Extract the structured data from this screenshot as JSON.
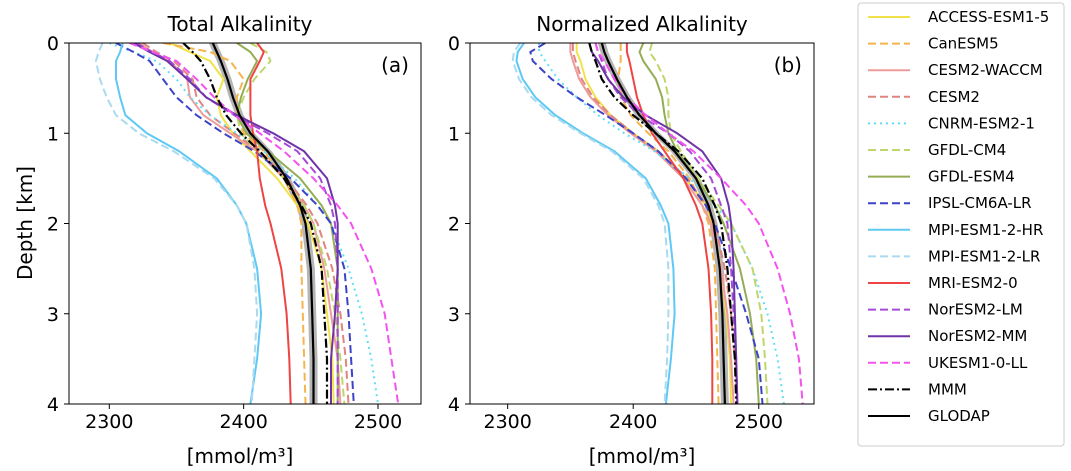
{
  "chart_data": [
    {
      "type": "line",
      "title": "Total Alkalinity",
      "panel_label": "(a)",
      "xlabel": "[mmol/m³]",
      "ylabel": "Depth [km]",
      "xlim": [
        2270,
        2532
      ],
      "ylim": [
        4,
        0
      ],
      "xticks": [
        2300,
        2400,
        2500
      ],
      "yticks": [
        0,
        1,
        2,
        3,
        4
      ],
      "y_axis_inverted": true,
      "depth_km": [
        0,
        0.1,
        0.2,
        0.4,
        0.6,
        0.8,
        1.0,
        1.2,
        1.5,
        1.8,
        2.0,
        2.5,
        3.0,
        3.5,
        4.0
      ],
      "series": [
        {
          "name": "ACCESS-ESM1-5",
          "values": [
            2345,
            2360,
            2375,
            2385,
            2380,
            2383,
            2392,
            2405,
            2425,
            2440,
            2448,
            2458,
            2462,
            2466,
            2467
          ]
        },
        {
          "name": "CanESM5",
          "values": [
            2340,
            2375,
            2390,
            2400,
            2395,
            2395,
            2400,
            2415,
            2430,
            2440,
            2443,
            2443,
            2444,
            2445,
            2446
          ]
        },
        {
          "name": "CESM2-WACCM",
          "values": [
            2322,
            2332,
            2345,
            2358,
            2360,
            2370,
            2390,
            2410,
            2430,
            2445,
            2452,
            2460,
            2465,
            2470,
            2472
          ]
        },
        {
          "name": "CESM2",
          "values": [
            2325,
            2335,
            2348,
            2362,
            2365,
            2375,
            2393,
            2412,
            2432,
            2447,
            2455,
            2466,
            2472,
            2476,
            2478
          ]
        },
        {
          "name": "CNRM-ESM2-1",
          "values": [
            2300,
            2318,
            2335,
            2350,
            2360,
            2375,
            2395,
            2415,
            2438,
            2455,
            2465,
            2478,
            2488,
            2495,
            2500
          ]
        },
        {
          "name": "GFDL-CM4",
          "values": [
            2405,
            2417,
            2420,
            2408,
            2400,
            2395,
            2398,
            2410,
            2430,
            2445,
            2452,
            2462,
            2468,
            2472,
            2475
          ]
        },
        {
          "name": "GFDL-ESM4",
          "values": [
            2395,
            2405,
            2410,
            2403,
            2398,
            2395,
            2402,
            2418,
            2442,
            2458,
            2465,
            2470,
            2470,
            2470,
            2470
          ]
        },
        {
          "name": "IPSL-CM6A-LR",
          "values": [
            2305,
            2318,
            2330,
            2340,
            2350,
            2365,
            2385,
            2408,
            2435,
            2455,
            2465,
            2475,
            2478,
            2480,
            2482
          ]
        },
        {
          "name": "MPI-ESM1-2-HR",
          "values": [
            2310,
            2308,
            2305,
            2305,
            2308,
            2312,
            2328,
            2352,
            2380,
            2395,
            2402,
            2410,
            2413,
            2410,
            2405
          ]
        },
        {
          "name": "MPI-ESM1-2-LR",
          "values": [
            2295,
            2292,
            2290,
            2293,
            2298,
            2305,
            2322,
            2348,
            2378,
            2395,
            2402,
            2408,
            2410,
            2408,
            2406
          ]
        },
        {
          "name": "MRI-ESM2-0",
          "values": [
            2410,
            2415,
            2412,
            2405,
            2405,
            2405,
            2407,
            2410,
            2412,
            2416,
            2420,
            2428,
            2432,
            2434,
            2435
          ]
        },
        {
          "name": "NorESM2-LM",
          "values": [
            2320,
            2332,
            2345,
            2360,
            2372,
            2393,
            2418,
            2440,
            2457,
            2465,
            2468,
            2470,
            2470,
            2470,
            2470
          ]
        },
        {
          "name": "NorESM2-MM",
          "values": [
            2318,
            2330,
            2343,
            2358,
            2372,
            2395,
            2422,
            2445,
            2462,
            2468,
            2470,
            2470,
            2468,
            2465,
            2465
          ]
        },
        {
          "name": "UKESM1-0-LL",
          "values": [
            2315,
            2332,
            2350,
            2365,
            2378,
            2393,
            2412,
            2430,
            2452,
            2470,
            2480,
            2495,
            2505,
            2510,
            2515
          ]
        },
        {
          "name": "MMM",
          "values": [
            2355,
            2362,
            2368,
            2375,
            2380,
            2387,
            2398,
            2412,
            2430,
            2443,
            2450,
            2458,
            2460,
            2462,
            2462
          ]
        },
        {
          "name": "GLODAP",
          "values": [
            2377,
            2380,
            2383,
            2388,
            2392,
            2397,
            2405,
            2418,
            2432,
            2442,
            2446,
            2450,
            2451,
            2452,
            2452
          ]
        }
      ]
    },
    {
      "type": "line",
      "title": "Normalized Alkalinity",
      "panel_label": "(b)",
      "xlabel": "[mmol/m³]",
      "ylabel": "",
      "xlim": [
        2270,
        2544
      ],
      "ylim": [
        4,
        0
      ],
      "xticks": [
        2300,
        2400,
        2500
      ],
      "yticks": [
        0,
        1,
        2,
        3,
        4
      ],
      "y_axis_inverted": true,
      "depth_km": [
        0,
        0.1,
        0.2,
        0.4,
        0.6,
        0.8,
        1.0,
        1.2,
        1.5,
        1.8,
        2.0,
        2.5,
        3.0,
        3.5,
        4.0
      ],
      "series": [
        {
          "name": "ACCESS-ESM1-5",
          "values": [
            2355,
            2355,
            2358,
            2362,
            2370,
            2382,
            2400,
            2420,
            2442,
            2458,
            2463,
            2470,
            2474,
            2477,
            2478
          ]
        },
        {
          "name": "CanESM5",
          "values": [
            2390,
            2390,
            2390,
            2388,
            2390,
            2398,
            2412,
            2428,
            2445,
            2455,
            2460,
            2465,
            2466,
            2467,
            2468
          ]
        },
        {
          "name": "CESM2-WACCM",
          "values": [
            2350,
            2350,
            2352,
            2357,
            2366,
            2380,
            2398,
            2418,
            2440,
            2455,
            2462,
            2470,
            2475,
            2478,
            2480
          ]
        },
        {
          "name": "CESM2",
          "values": [
            2352,
            2352,
            2354,
            2359,
            2368,
            2382,
            2400,
            2420,
            2443,
            2458,
            2465,
            2473,
            2478,
            2481,
            2483
          ]
        },
        {
          "name": "CNRM-ESM2-1",
          "values": [
            2325,
            2325,
            2330,
            2340,
            2355,
            2372,
            2393,
            2417,
            2445,
            2465,
            2478,
            2495,
            2507,
            2515,
            2520
          ]
        },
        {
          "name": "GFDL-CM4",
          "values": [
            2415,
            2413,
            2418,
            2425,
            2428,
            2428,
            2430,
            2438,
            2452,
            2468,
            2478,
            2495,
            2502,
            2505,
            2507
          ]
        },
        {
          "name": "GFDL-ESM4",
          "values": [
            2408,
            2405,
            2408,
            2418,
            2423,
            2425,
            2428,
            2435,
            2450,
            2465,
            2472,
            2485,
            2493,
            2498,
            2500
          ]
        },
        {
          "name": "IPSL-CM6A-LR",
          "values": [
            2330,
            2318,
            2320,
            2335,
            2355,
            2378,
            2400,
            2420,
            2442,
            2458,
            2465,
            2478,
            2490,
            2500,
            2503
          ]
        },
        {
          "name": "MPI-ESM1-2-HR",
          "values": [
            2313,
            2308,
            2307,
            2312,
            2322,
            2338,
            2360,
            2385,
            2410,
            2422,
            2428,
            2432,
            2433,
            2430,
            2426
          ]
        },
        {
          "name": "MPI-ESM1-2-LR",
          "values": [
            2310,
            2305,
            2304,
            2309,
            2319,
            2335,
            2358,
            2383,
            2408,
            2420,
            2425,
            2428,
            2428,
            2427,
            2425
          ]
        },
        {
          "name": "MRI-ESM2-0",
          "values": [
            2395,
            2395,
            2397,
            2400,
            2403,
            2408,
            2415,
            2425,
            2440,
            2450,
            2455,
            2460,
            2462,
            2463,
            2463
          ]
        },
        {
          "name": "NorESM2-LM",
          "values": [
            2370,
            2372,
            2375,
            2380,
            2390,
            2405,
            2428,
            2445,
            2462,
            2470,
            2475,
            2478,
            2480,
            2482,
            2483
          ]
        },
        {
          "name": "NorESM2-MM",
          "values": [
            2365,
            2367,
            2372,
            2380,
            2392,
            2410,
            2435,
            2455,
            2470,
            2476,
            2478,
            2480,
            2481,
            2482,
            2483
          ]
        },
        {
          "name": "UKESM1-0-LL",
          "values": [
            2370,
            2372,
            2377,
            2385,
            2395,
            2410,
            2428,
            2448,
            2470,
            2490,
            2500,
            2515,
            2525,
            2532,
            2535
          ]
        },
        {
          "name": "MMM",
          "values": [
            2365,
            2367,
            2370,
            2375,
            2385,
            2400,
            2418,
            2436,
            2455,
            2465,
            2470,
            2475,
            2478,
            2481,
            2482
          ]
        },
        {
          "name": "GLODAP",
          "values": [
            2375,
            2377,
            2380,
            2387,
            2395,
            2405,
            2418,
            2433,
            2450,
            2460,
            2464,
            2469,
            2471,
            2472,
            2473
          ]
        }
      ]
    }
  ],
  "legend": {
    "placement": "right",
    "entries": [
      {
        "name": "ACCESS-ESM1-5",
        "color": "#f2e24a",
        "style": "solid"
      },
      {
        "name": "CanESM5",
        "color": "#f5b44e",
        "style": "dashed"
      },
      {
        "name": "CESM2-WACCM",
        "color": "#ee9b9b",
        "style": "solid"
      },
      {
        "name": "CESM2",
        "color": "#df8580",
        "style": "dashed"
      },
      {
        "name": "CNRM-ESM2-1",
        "color": "#5fe0f5",
        "style": "dotted"
      },
      {
        "name": "GFDL-CM4",
        "color": "#bfd66a",
        "style": "dashed"
      },
      {
        "name": "GFDL-ESM4",
        "color": "#94ad55",
        "style": "solid"
      },
      {
        "name": "IPSL-CM6A-LR",
        "color": "#3d43c8",
        "style": "dashed"
      },
      {
        "name": "MPI-ESM1-2-HR",
        "color": "#5ec9f4",
        "style": "solid"
      },
      {
        "name": "MPI-ESM1-2-LR",
        "color": "#a9daf0",
        "style": "dashed"
      },
      {
        "name": "MRI-ESM2-0",
        "color": "#ef4444",
        "style": "solid"
      },
      {
        "name": "NorESM2-LM",
        "color": "#a64ad8",
        "style": "dashed"
      },
      {
        "name": "NorESM2-MM",
        "color": "#6f35a8",
        "style": "solid"
      },
      {
        "name": "UKESM1-0-LL",
        "color": "#f353ee",
        "style": "dashed"
      },
      {
        "name": "MMM",
        "color": "#000000",
        "style": "dashdot"
      },
      {
        "name": "GLODAP",
        "color": "#000000",
        "style": "solid"
      }
    ]
  },
  "glodap_band_color": "#a8a8a8"
}
